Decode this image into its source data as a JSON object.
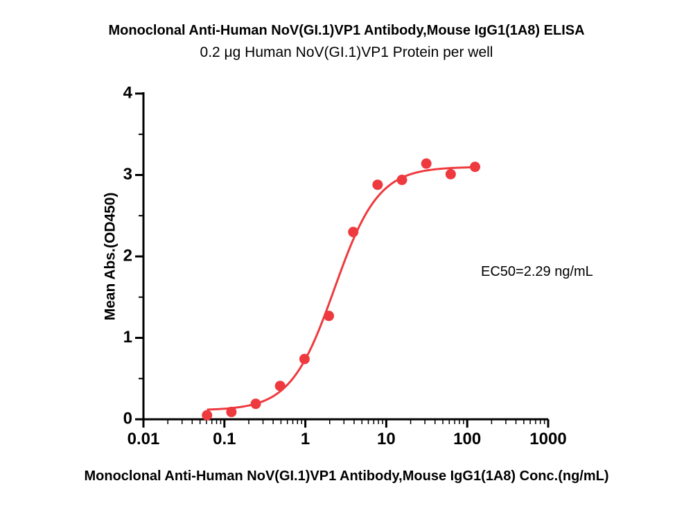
{
  "chart_data": {
    "type": "scatter",
    "title": "Monoclonal Anti-Human NoV(GI.1)VP1 Antibody,Mouse IgG1(1A8) ELISA",
    "subtitle": "0.2 μg Human NoV(GI.1)VP1 Protein per well",
    "xlabel": "Monoclonal Anti-Human NoV(GI.1)VP1 Antibody,Mouse IgG1(1A8) Conc.(ng/mL)",
    "ylabel": "Mean Abs.(OD450)",
    "x_scale": "log",
    "xlim": [
      0.01,
      1000
    ],
    "ylim": [
      0,
      4
    ],
    "x_ticks": [
      "0.01",
      "0.1",
      "1",
      "10",
      "100",
      "1000"
    ],
    "y_ticks": [
      "0",
      "1",
      "2",
      "3",
      "4"
    ],
    "grid": false,
    "legend": "none",
    "annotation": "EC50=2.29 ng/mL",
    "series": [
      {
        "kind": "points",
        "color": "#ee3a3e",
        "x": [
          0.061,
          0.122,
          0.244,
          0.488,
          0.977,
          1.953,
          3.906,
          7.813,
          15.625,
          31.25,
          62.5,
          125
        ],
        "y": [
          0.05,
          0.09,
          0.19,
          0.41,
          0.74,
          1.27,
          2.3,
          2.88,
          2.94,
          3.14,
          3.01,
          3.1
        ]
      },
      {
        "kind": "fit",
        "color": "#ee3a3e",
        "model": "4PL",
        "bottom": 0.11,
        "top": 3.1,
        "ec50": 2.29,
        "hill": 1.6,
        "x_range": [
          0.061,
          125
        ]
      }
    ]
  }
}
